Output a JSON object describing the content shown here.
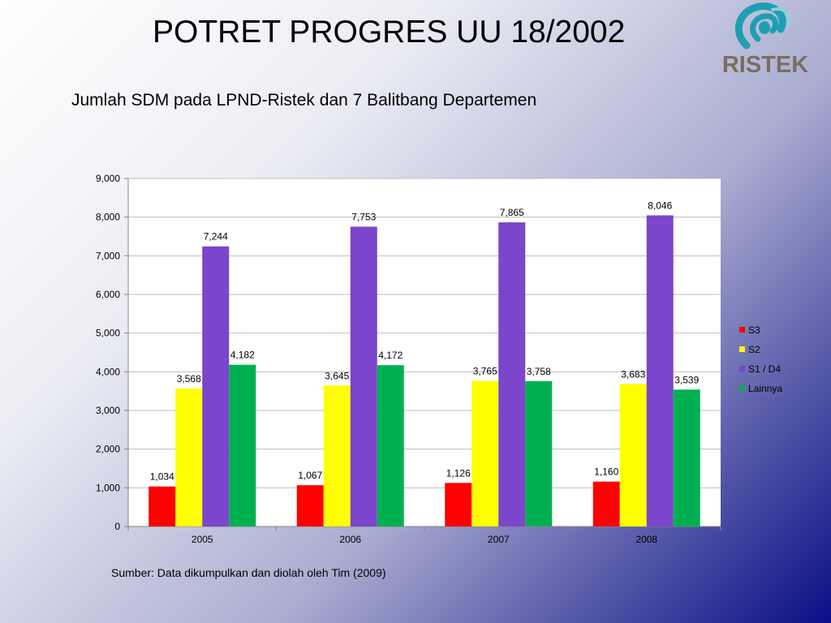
{
  "title": "POTRET PROGRES UU 18/2002",
  "subtitle": "Jumlah SDM pada LPND-Ristek dan 7 Balitbang Departemen",
  "logo": {
    "text": "RISTEK",
    "icon": "ristek-swirl-logo",
    "colors": {
      "text": "#7a6e61",
      "swirl": "#1e9fb1"
    }
  },
  "source": "Sumber: Data dikumpulkan dan diolah oleh Tim (2009)",
  "chart_data": {
    "type": "bar",
    "categories": [
      "2005",
      "2006",
      "2007",
      "2008"
    ],
    "series": [
      {
        "name": "S3",
        "color": "#ff0000",
        "values": [
          1034,
          1067,
          1126,
          1160
        ],
        "labels": [
          "1,034",
          "1,067",
          "1,126",
          "1,160"
        ]
      },
      {
        "name": "S2",
        "color": "#ffff00",
        "values": [
          3568,
          3645,
          3765,
          3683
        ],
        "labels": [
          "3,568",
          "3,645",
          "3,765",
          "3,683"
        ]
      },
      {
        "name": "S1 / D4",
        "color": "#7b45cc",
        "values": [
          7244,
          7753,
          7865,
          8046
        ],
        "labels": [
          "7,244",
          "7,753",
          "7,865",
          "8,046"
        ]
      },
      {
        "name": "Lainnya",
        "color": "#00b050",
        "values": [
          4182,
          4172,
          3758,
          3539
        ],
        "labels": [
          "4,182",
          "4,172",
          "3,758",
          "3,539"
        ]
      }
    ],
    "ylim": [
      0,
      9000
    ],
    "yticks": [
      0,
      1000,
      2000,
      3000,
      4000,
      5000,
      6000,
      7000,
      8000,
      9000
    ],
    "ytick_labels": [
      "0",
      "1,000",
      "2,000",
      "3,000",
      "4,000",
      "5,000",
      "6,000",
      "7,000",
      "8,000",
      "9,000"
    ],
    "grid": true,
    "legend_position": "right",
    "xlabel": "",
    "ylabel": ""
  }
}
